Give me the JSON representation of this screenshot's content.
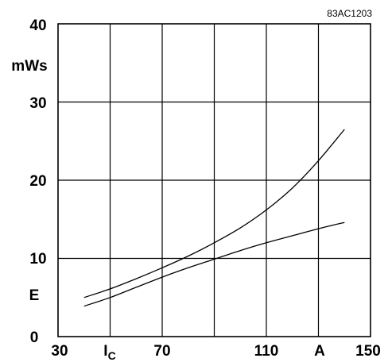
{
  "figure_code": "83AC1203",
  "chart_data": {
    "type": "line",
    "xlim": [
      30,
      150
    ],
    "ylim": [
      0,
      40
    ],
    "x_ticks": [
      30,
      70,
      110,
      150
    ],
    "y_ticks": [
      0,
      10,
      20,
      30,
      40
    ],
    "x_tick_labels": [
      "30",
      "70",
      "110",
      "150"
    ],
    "y_tick_labels": [
      "0",
      "10",
      "20",
      "30",
      "40"
    ],
    "x_label_symbol": "I",
    "x_label_subscript": "C",
    "x_unit": "A",
    "y_label": "E",
    "y_unit": "mWs",
    "grid": true,
    "series": [
      {
        "x": [
          40,
          50,
          60,
          70,
          80,
          90,
          100,
          110,
          120,
          130,
          140
        ],
        "y": [
          5.0,
          6.1,
          7.4,
          8.8,
          10.3,
          12.0,
          13.9,
          16.2,
          19.0,
          22.5,
          26.5
        ]
      },
      {
        "x": [
          40,
          50,
          60,
          70,
          80,
          90,
          100,
          110,
          120,
          130,
          140
        ],
        "y": [
          3.9,
          5.0,
          6.3,
          7.6,
          8.8,
          9.9,
          11.0,
          12.0,
          12.9,
          13.8,
          14.6
        ]
      }
    ]
  }
}
